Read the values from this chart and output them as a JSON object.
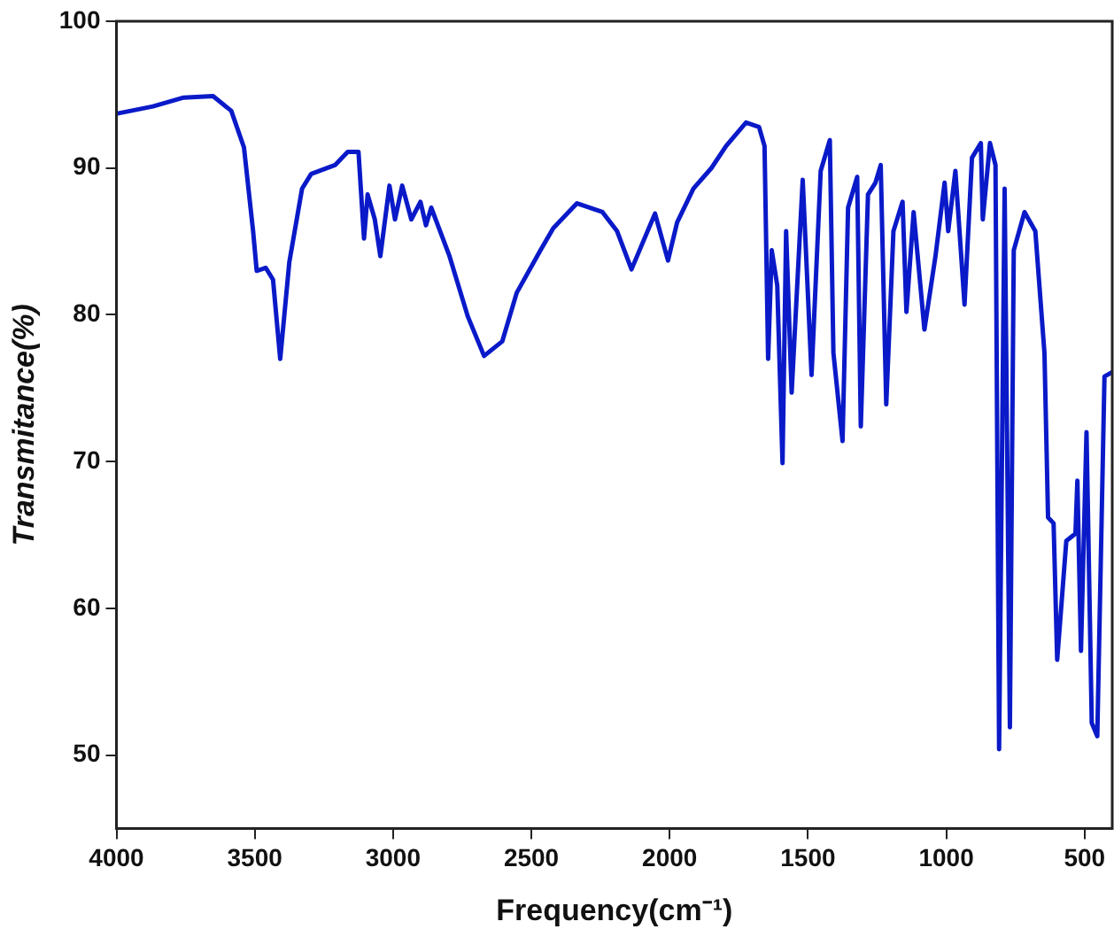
{
  "chart_data": {
    "type": "line",
    "xlabel": "Frequency(cm⁻¹)",
    "ylabel": "Transmitance(%)",
    "xlim": [
      4000,
      400
    ],
    "xticks": [
      4000,
      3500,
      3000,
      2500,
      2000,
      1500,
      1000,
      500
    ],
    "ylim": [
      45,
      100
    ],
    "yticks": [
      50,
      60,
      70,
      80,
      90,
      100
    ],
    "grid": false,
    "legend": false,
    "marker": "none",
    "line_style": "solid",
    "series": [
      {
        "color": "#0a1ac8",
        "x": [
          4000,
          3868,
          3757,
          3651,
          3585,
          3539,
          3506,
          3493,
          3460,
          3434,
          3408,
          3375,
          3329,
          3296,
          3210,
          3164,
          3125,
          3105,
          3092,
          3066,
          3046,
          3013,
          2993,
          2967,
          2934,
          2901,
          2881,
          2862,
          2796,
          2730,
          2671,
          2605,
          2553,
          2467,
          2421,
          2335,
          2243,
          2190,
          2138,
          2053,
          2006,
          1973,
          1914,
          1849,
          1796,
          1724,
          1677,
          1657,
          1644,
          1631,
          1611,
          1592,
          1579,
          1559,
          1519,
          1487,
          1454,
          1421,
          1408,
          1375,
          1355,
          1322,
          1309,
          1283,
          1256,
          1237,
          1217,
          1191,
          1158,
          1144,
          1118,
          1079,
          1039,
          1006,
          993,
          967,
          934,
          907,
          875,
          868,
          842,
          822,
          809,
          789,
          770,
          756,
          717,
          678,
          645,
          632,
          612,
          599,
          566,
          533,
          526,
          513,
          493,
          474,
          454,
          428,
          400
        ],
        "values": [
          93.7,
          94.2,
          94.8,
          94.9,
          93.9,
          91.4,
          85.7,
          83.0,
          83.2,
          82.4,
          77.0,
          83.6,
          88.6,
          89.6,
          90.2,
          91.1,
          91.1,
          85.2,
          88.2,
          86.5,
          84.0,
          88.8,
          86.5,
          88.8,
          86.5,
          87.7,
          86.1,
          87.3,
          84.0,
          79.9,
          77.2,
          78.2,
          81.5,
          84.4,
          85.9,
          87.6,
          87.0,
          85.7,
          83.1,
          86.9,
          83.7,
          86.3,
          88.6,
          90.0,
          91.5,
          93.1,
          92.8,
          91.5,
          77.0,
          84.4,
          82.0,
          69.9,
          85.7,
          74.7,
          89.2,
          75.9,
          89.8,
          91.9,
          77.4,
          71.4,
          87.3,
          89.4,
          72.4,
          88.2,
          89.0,
          90.2,
          73.9,
          85.7,
          87.7,
          80.2,
          87.0,
          79.0,
          84.0,
          89.0,
          85.7,
          89.8,
          80.7,
          90.7,
          91.7,
          86.5,
          91.7,
          90.2,
          50.4,
          88.6,
          51.9,
          84.4,
          87.0,
          85.7,
          77.4,
          66.2,
          65.8,
          56.5,
          64.6,
          65.1,
          68.7,
          57.1,
          72.0,
          52.2,
          51.3,
          75.8,
          76.1
        ]
      }
    ]
  }
}
